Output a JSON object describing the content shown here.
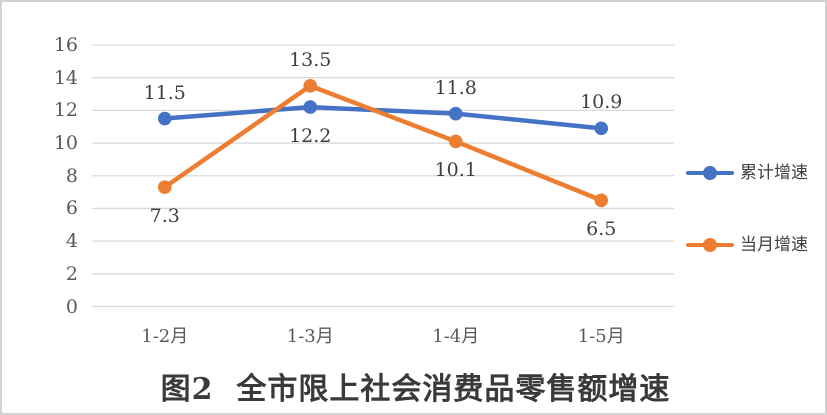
{
  "frame": {
    "border_color": "#d2d2d2",
    "background": "#ffffff"
  },
  "chart_data": {
    "type": "line",
    "title": "图2  全市限上社会消费品零售额增速",
    "xlabel": "",
    "ylabel": "",
    "categories": [
      "1-2月",
      "1-3月",
      "1-4月",
      "1-5月"
    ],
    "series": [
      {
        "name": "累计增速",
        "color": "#4472C4",
        "values": [
          11.5,
          12.2,
          11.8,
          10.9
        ],
        "data_labels": [
          "11.5",
          "12.2",
          "11.8",
          "10.9"
        ],
        "label_positions": [
          "above",
          "below",
          "above",
          "above"
        ]
      },
      {
        "name": "当月增速",
        "color": "#ED7D31",
        "values": [
          7.3,
          13.5,
          10.1,
          6.5
        ],
        "data_labels": [
          "7.3",
          "13.5",
          "10.1",
          "6.5"
        ],
        "label_positions": [
          "below",
          "above",
          "below",
          "below"
        ]
      }
    ],
    "y_axis": {
      "min": 0,
      "max": 16,
      "step": 2,
      "tick_labels": [
        "0",
        "2",
        "4",
        "6",
        "8",
        "10",
        "12",
        "14",
        "16"
      ]
    },
    "ylim": [
      0,
      16
    ],
    "grid": true,
    "legend_position": "right",
    "colors": {
      "gridline": "#d9d9d9",
      "axis_text": "#595959",
      "data_label_text": "#404040",
      "legend_text": "#404040",
      "title_text": "#3a3a3a"
    }
  }
}
